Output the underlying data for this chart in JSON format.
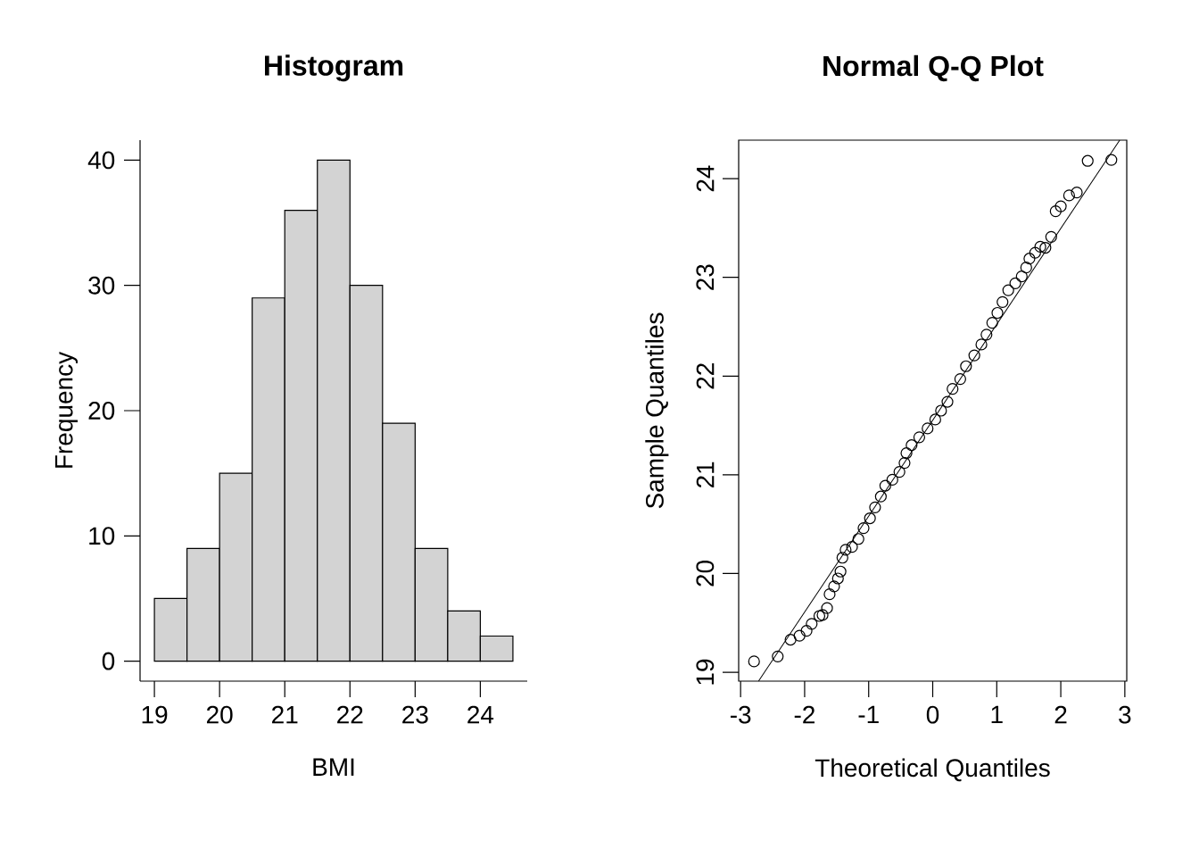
{
  "chart_data": [
    {
      "type": "histogram",
      "title": "Histogram",
      "xlabel": "BMI",
      "ylabel": "Frequency",
      "bins": [
        19,
        19.5,
        20,
        20.5,
        21,
        21.5,
        22,
        22.5,
        23,
        23.5,
        24,
        24.5
      ],
      "values": [
        5,
        9,
        15,
        29,
        36,
        40,
        30,
        19,
        9,
        4,
        2
      ],
      "color": "#d3d3d3",
      "xlim": [
        18.78,
        24.72
      ],
      "ylim": [
        -1.6,
        41.6
      ],
      "xticks": [
        19,
        20,
        21,
        22,
        23,
        24
      ],
      "yticks": [
        0,
        10,
        20,
        30,
        40
      ]
    },
    {
      "type": "scatter",
      "title": "Normal Q-Q Plot",
      "xlabel": "Theoretical Quantiles",
      "ylabel": "Sample Quantiles",
      "xlim": [
        -3.03,
        3.03
      ],
      "ylim": [
        18.91,
        24.39
      ],
      "xticks": [
        -3,
        -2,
        -1,
        0,
        1,
        2,
        3
      ],
      "yticks": [
        19,
        20,
        21,
        22,
        23,
        24
      ],
      "series": [
        {
          "type": "scatter",
          "marker": "circle",
          "color": "#000000",
          "x": [
            -2.79,
            -2.42,
            -2.22,
            -2.08,
            -1.97,
            -1.89,
            -1.77,
            -1.72,
            -1.65,
            -1.61,
            -1.54,
            -1.48,
            -1.44,
            -1.41,
            -1.36,
            -1.26,
            -1.16,
            -1.08,
            -0.98,
            -0.9,
            -0.81,
            -0.74,
            -0.63,
            -0.52,
            -0.44,
            -0.41,
            -0.33,
            -0.21,
            -0.08,
            0.04,
            0.13,
            0.23,
            0.31,
            0.43,
            0.52,
            0.65,
            0.76,
            0.84,
            0.93,
            1.01,
            1.09,
            1.18,
            1.29,
            1.39,
            1.46,
            1.51,
            1.6,
            1.68,
            1.76,
            1.85,
            1.92,
            2.0,
            2.13,
            2.25,
            2.42,
            2.79
          ],
          "values": [
            19.11,
            19.16,
            19.33,
            19.37,
            19.42,
            19.49,
            19.57,
            19.58,
            19.65,
            19.79,
            19.87,
            19.95,
            20.02,
            20.16,
            20.24,
            20.27,
            20.35,
            20.46,
            20.56,
            20.67,
            20.78,
            20.89,
            20.95,
            21.03,
            21.12,
            21.22,
            21.3,
            21.38,
            21.47,
            21.56,
            21.65,
            21.74,
            21.87,
            21.97,
            22.1,
            22.21,
            22.32,
            22.42,
            22.54,
            22.64,
            22.75,
            22.87,
            22.94,
            23.01,
            23.1,
            23.19,
            23.25,
            23.31,
            23.3,
            23.41,
            23.67,
            23.72,
            23.83,
            23.86,
            24.18,
            24.19
          ]
        },
        {
          "type": "line",
          "marker": "none",
          "color": "#000000",
          "x": [
            -2.72,
            2.92
          ],
          "values": [
            18.91,
            24.39
          ]
        }
      ]
    }
  ]
}
